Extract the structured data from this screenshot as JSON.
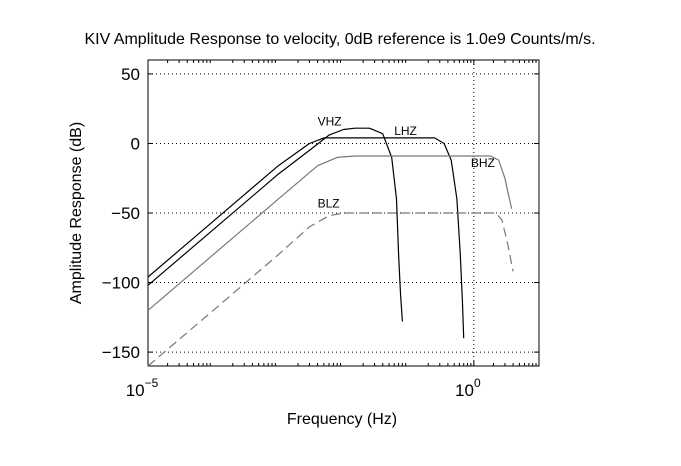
{
  "chart_data": {
    "type": "line",
    "title": "KIV Amplitude Response to velocity, 0dB reference is 1.0e9 Counts/m/s.",
    "xlabel": "Frequency (Hz)",
    "ylabel": "Amplitude Response (dB)",
    "x_scale": "log",
    "xlim": [
      1e-05,
      10
    ],
    "ylim": [
      -160,
      60
    ],
    "x_ticks": [
      {
        "value": 1e-05,
        "base": "10",
        "exp": "−5"
      },
      {
        "value": 1,
        "base": "10",
        "exp": "0"
      }
    ],
    "y_ticks": [
      {
        "value": 50,
        "label": "50"
      },
      {
        "value": 0,
        "label": "0"
      },
      {
        "value": -50,
        "label": "−50"
      },
      {
        "value": -100,
        "label": "−100"
      },
      {
        "value": -150,
        "label": "−150"
      }
    ],
    "grid": true,
    "series": [
      {
        "name": "VHZ",
        "color": "#000000",
        "dash": "solid",
        "label_at": [
          0.004,
          13
        ],
        "points": [
          [
            1e-05,
            -102
          ],
          [
            0.0001,
            -62
          ],
          [
            0.001,
            -22
          ],
          [
            0.003,
            -5
          ],
          [
            0.006,
            6
          ],
          [
            0.01,
            10
          ],
          [
            0.015,
            11
          ],
          [
            0.025,
            11
          ],
          [
            0.04,
            7
          ],
          [
            0.055,
            -10
          ],
          [
            0.065,
            -40
          ],
          [
            0.07,
            -80
          ],
          [
            0.075,
            -108
          ],
          [
            0.08,
            -128
          ]
        ]
      },
      {
        "name": "LHZ",
        "color": "#000000",
        "dash": "solid",
        "label_at": [
          0.06,
          6
        ],
        "points": [
          [
            1e-05,
            -96
          ],
          [
            0.0001,
            -56
          ],
          [
            0.001,
            -16
          ],
          [
            0.003,
            0
          ],
          [
            0.005,
            4
          ],
          [
            0.01,
            4
          ],
          [
            0.1,
            4
          ],
          [
            0.25,
            4
          ],
          [
            0.35,
            0
          ],
          [
            0.45,
            -12
          ],
          [
            0.55,
            -40
          ],
          [
            0.62,
            -80
          ],
          [
            0.67,
            -115
          ],
          [
            0.7,
            -140
          ]
        ]
      },
      {
        "name": "BHZ",
        "color": "#777777",
        "dash": "solid",
        "label_at": [
          0.9,
          -17
        ],
        "points": [
          [
            1e-05,
            -120
          ],
          [
            0.0001,
            -80
          ],
          [
            0.001,
            -40
          ],
          [
            0.004,
            -16
          ],
          [
            0.008,
            -10
          ],
          [
            0.015,
            -9
          ],
          [
            0.1,
            -9
          ],
          [
            1,
            -9
          ],
          [
            1.8,
            -9
          ],
          [
            2.4,
            -12
          ],
          [
            3,
            -25
          ],
          [
            3.8,
            -47
          ]
        ]
      },
      {
        "name": "BLZ",
        "color": "#777777",
        "dash": "dashed",
        "label_at": [
          0.004,
          -46
        ],
        "points": [
          [
            1e-05,
            -160
          ],
          [
            0.0001,
            -120
          ],
          [
            0.001,
            -80
          ],
          [
            0.003,
            -60
          ],
          [
            0.006,
            -52
          ],
          [
            0.01,
            -50
          ],
          [
            0.1,
            -50
          ],
          [
            1,
            -50
          ],
          [
            2.2,
            -50
          ],
          [
            2.7,
            -55
          ],
          [
            3.3,
            -72
          ],
          [
            4,
            -92
          ]
        ]
      }
    ]
  }
}
